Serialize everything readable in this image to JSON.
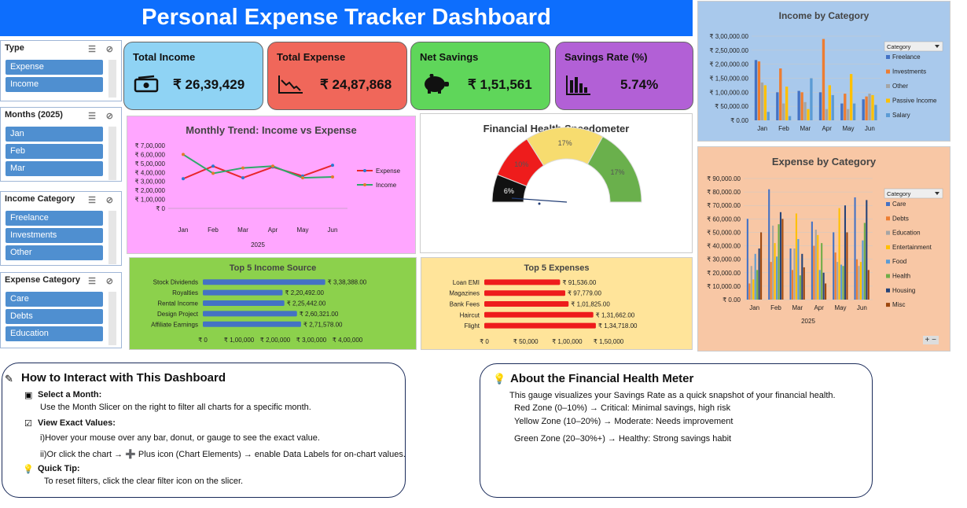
{
  "title": "Personal Expense Tracker Dashboard",
  "slicers": {
    "type": {
      "title": "Type",
      "items": [
        "Expense",
        "Income"
      ]
    },
    "months": {
      "title": "Months (2025)",
      "items": [
        "Jan",
        "Feb",
        "Mar"
      ]
    },
    "income_category": {
      "title": "Income Category",
      "items": [
        "Freelance",
        "Investments",
        "Other"
      ]
    },
    "expense_category": {
      "title": "Expense Category",
      "items": [
        "Care",
        "Debts",
        "Education"
      ]
    }
  },
  "kpis": {
    "total_income": {
      "label": "Total Income",
      "value": "₹ 26,39,429",
      "color": "#8fd3f4"
    },
    "total_expense": {
      "label": "Total Expense",
      "value": "₹ 24,87,868",
      "color": "#f0675a"
    },
    "net_savings": {
      "label": "Net Savings",
      "value": "₹ 1,51,561",
      "color": "#5fd65a"
    },
    "savings_rate": {
      "label": "Savings Rate (%)",
      "value": "5.74%",
      "color": "#b260d6"
    }
  },
  "chart_data": [
    {
      "id": "monthly_trend",
      "type": "line",
      "title": "Monthly Trend: Income vs Expense",
      "categories": [
        "Jan",
        "Feb",
        "Mar",
        "Apr",
        "May",
        "Jun"
      ],
      "xlabel": "2025",
      "ylim": [
        0,
        700000
      ],
      "yticks": [
        "₹ 0",
        "₹ 1,00,000",
        "₹ 2,00,000",
        "₹ 3,00,000",
        "₹ 4,00,000",
        "₹ 5,00,000",
        "₹ 6,00,000",
        "₹ 7,00,000"
      ],
      "series": [
        {
          "name": "Expense",
          "values": [
            330000,
            470000,
            340000,
            460000,
            360000,
            480000
          ],
          "color": "#e8262b"
        },
        {
          "name": "Income",
          "values": [
            600000,
            390000,
            450000,
            470000,
            340000,
            350000
          ],
          "color": "#2ea86a"
        }
      ]
    },
    {
      "id": "speedometer",
      "type": "gauge",
      "title": "Financial Health Speedometer",
      "legend": [
        "Zone",
        "Needle"
      ],
      "zones": [
        {
          "name": "black",
          "percent": 6,
          "label": "6%",
          "color": "#111111"
        },
        {
          "name": "red",
          "percent": 10,
          "label": "10%",
          "color": "#ee1c1c"
        },
        {
          "name": "yellow",
          "percent": 17,
          "label": "17%",
          "color": "#f7dc6f"
        },
        {
          "name": "green",
          "percent": 17,
          "label": "17%",
          "color": "#6ab04c"
        }
      ]
    },
    {
      "id": "income_by_category",
      "type": "bar",
      "title": "Income by Category",
      "categories": [
        "Jan",
        "Feb",
        "Mar",
        "Apr",
        "May",
        "Jun"
      ],
      "ylim": [
        0,
        300000
      ],
      "yticks": [
        "₹ 0.00",
        "₹ 50,000.00",
        "₹ 1,00,000.00",
        "₹ 1,50,000.00",
        "₹ 2,00,000.00",
        "₹ 2,50,000.00",
        "₹ 3,00,000.00"
      ],
      "legend_title": "Category",
      "series": [
        {
          "name": "Freelance",
          "values": [
            215000,
            100000,
            105000,
            100000,
            60000,
            75000
          ],
          "color": "#4472c4"
        },
        {
          "name": "Investments",
          "values": [
            210000,
            185000,
            100000,
            290000,
            95000,
            85000
          ],
          "color": "#ed7d31"
        },
        {
          "name": "Other",
          "values": [
            135000,
            60000,
            65000,
            40000,
            40000,
            95000
          ],
          "color": "#a5a5a5"
        },
        {
          "name": "Passive Income",
          "values": [
            125000,
            120000,
            40000,
            125000,
            165000,
            90000
          ],
          "color": "#ffc000"
        },
        {
          "name": "Salary",
          "values": [
            30000,
            15000,
            150000,
            90000,
            60000,
            55000
          ],
          "color": "#5b9bd5"
        }
      ]
    },
    {
      "id": "top5_income",
      "type": "bar",
      "title": "Top 5 Income Source",
      "categories": [
        "Stock Dividends",
        "Royalties",
        "Rental Income",
        "Design Project",
        "Affiliate Earnings"
      ],
      "values": [
        338388,
        220492,
        225442,
        260321,
        271578
      ],
      "labels": [
        "₹ 3,38,388.00",
        "₹ 2,20,492.00",
        "₹ 2,25,442.00",
        "₹ 2,60,321.00",
        "₹ 2,71,578.00"
      ],
      "xlim": [
        0,
        400000
      ],
      "xticks": [
        "₹ 0",
        "₹ 1,00,000",
        "₹ 2,00,000",
        "₹ 3,00,000",
        "₹ 4,00,000"
      ],
      "color": "#4472c4"
    },
    {
      "id": "top5_expenses",
      "type": "bar",
      "title": "Top 5 Expenses",
      "categories": [
        "Loan EMI",
        "Magazines",
        "Bank Fees",
        "Haircut",
        "Flight"
      ],
      "values": [
        91536,
        97779,
        101825,
        131662,
        134718
      ],
      "labels": [
        "₹ 91,536.00",
        "₹ 97,779.00",
        "₹ 1,01,825.00",
        "₹ 1,31,662.00",
        "₹ 1,34,718.00"
      ],
      "xlim": [
        0,
        150000
      ],
      "xticks": [
        "₹ 0",
        "₹ 50,000",
        "₹ 1,00,000",
        "₹ 1,50,000"
      ],
      "color": "#ee1c1c"
    },
    {
      "id": "expense_by_category",
      "type": "bar",
      "title": "Expense by Category",
      "categories": [
        "Jan",
        "Feb",
        "Mar",
        "Apr",
        "May",
        "Jun"
      ],
      "xlabel": "2025",
      "ylim": [
        0,
        90000
      ],
      "yticks": [
        "₹ 0.00",
        "₹ 10,000.00",
        "₹ 20,000.00",
        "₹ 30,000.00",
        "₹ 40,000.00",
        "₹ 50,000.00",
        "₹ 60,000.00",
        "₹ 70,000.00",
        "₹ 80,000.00",
        "₹ 90,000.00"
      ],
      "legend_title": "Category",
      "series": [
        {
          "name": "Care",
          "values": [
            60000,
            82000,
            38000,
            58000,
            50000,
            76000
          ],
          "color": "#4472c4"
        },
        {
          "name": "Debts",
          "values": [
            12000,
            28000,
            22000,
            40000,
            35000,
            30000
          ],
          "color": "#ed7d31"
        },
        {
          "name": "Education",
          "values": [
            25000,
            55000,
            38000,
            52000,
            28000,
            25000
          ],
          "color": "#a5a5a5"
        },
        {
          "name": "Entertainment",
          "values": [
            15000,
            42000,
            64000,
            48000,
            68000,
            28000
          ],
          "color": "#ffc000"
        },
        {
          "name": "Food",
          "values": [
            34000,
            32000,
            45000,
            22000,
            26000,
            44000
          ],
          "color": "#5b9bd5"
        },
        {
          "name": "Health",
          "values": [
            22000,
            56000,
            18000,
            42000,
            25000,
            57000
          ],
          "color": "#70ad47"
        },
        {
          "name": "Housing",
          "values": [
            38000,
            65000,
            34000,
            20000,
            70000,
            74000
          ],
          "color": "#264478"
        },
        {
          "name": "Misc",
          "values": [
            50000,
            60000,
            24000,
            12000,
            50000,
            22000
          ],
          "color": "#9e480e"
        }
      ]
    }
  ],
  "how_to": {
    "title": "How to Interact with This Dashboard",
    "select_month": "Select a Month:",
    "select_month_desc": "Use the Month Slicer on the right to filter all charts for a specific month.",
    "view_exact": "View Exact Values:",
    "hover": "i)Hover your mouse over any bar, donut, or gauge to see the exact value.",
    "click": "ii)Or click the chart → ➕ Plus icon (Chart Elements) → enable Data Labels for on-chart values.",
    "quick_tip": "Quick Tip:",
    "reset": "To reset filters, click the clear filter icon on the slicer."
  },
  "about": {
    "title": "About the Financial Health Meter",
    "desc": "This gauge visualizes your Savings Rate as a quick snapshot of your financial health.",
    "red": "Red Zone (0–10%) → Critical: Minimal savings, high risk",
    "yellow": "Yellow Zone (10–20%) → Moderate: Needs improvement",
    "green": "Green Zone (20–30%+) → Healthy: Strong savings habit"
  }
}
